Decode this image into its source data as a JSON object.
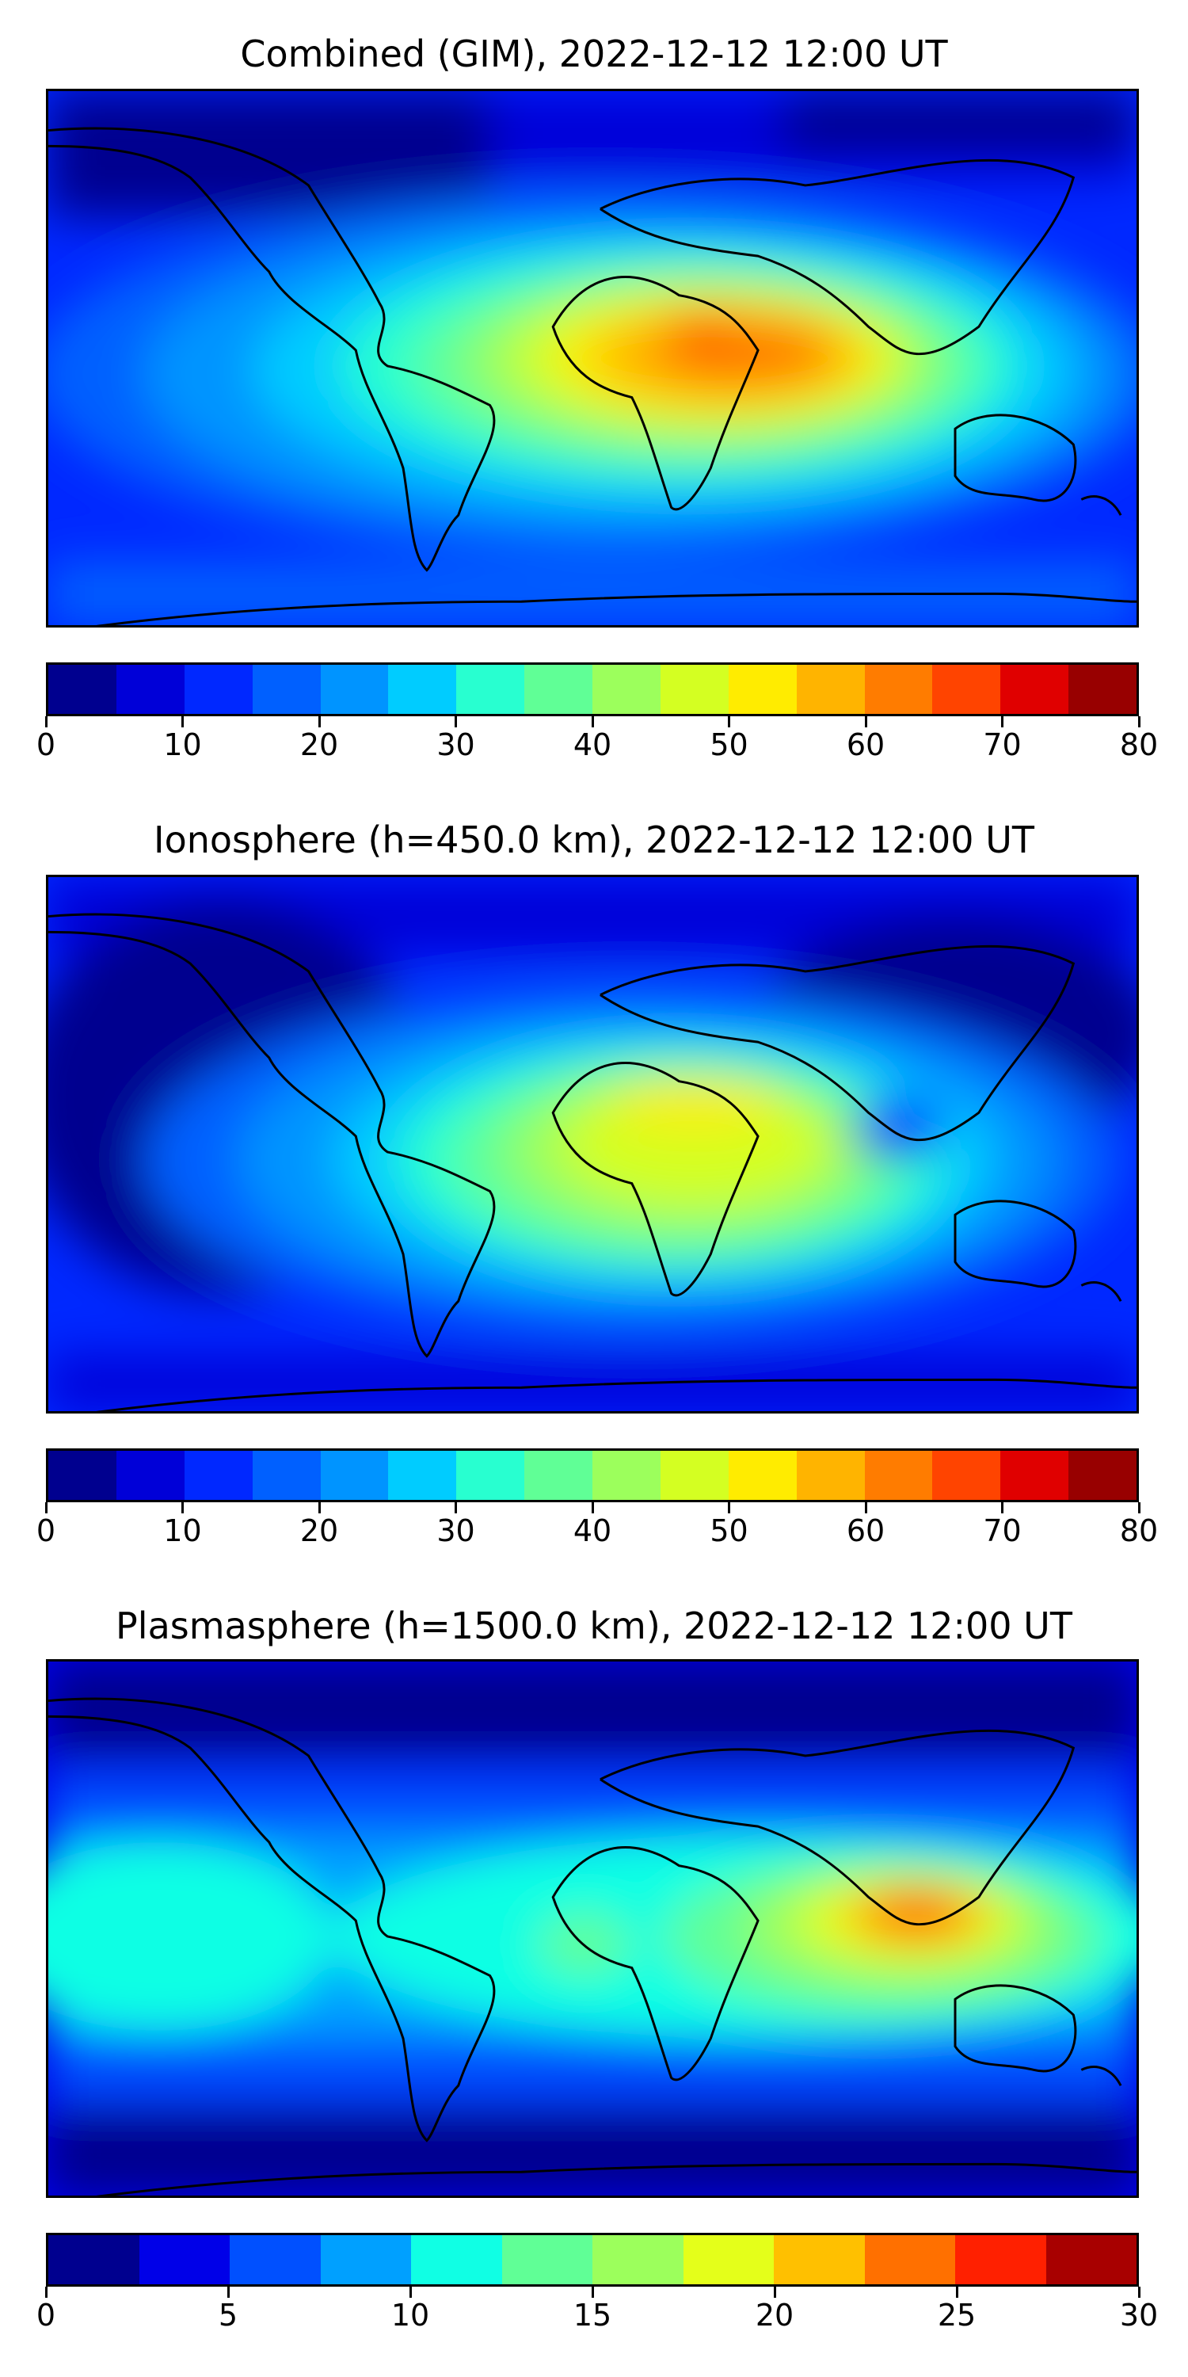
{
  "panels": [
    {
      "title": "Combined (GIM), 2022-12-12 12:00 UT",
      "levels": [
        0,
        5,
        10,
        15,
        20,
        25,
        30,
        35,
        40,
        45,
        50,
        55,
        60,
        65,
        70,
        75,
        80
      ],
      "colors": [
        "#00008f",
        "#0000d8",
        "#0028ff",
        "#0060ff",
        "#0094ff",
        "#00ccff",
        "#28ffd0",
        "#60ff96",
        "#9cff5c",
        "#d4ff22",
        "#ffec00",
        "#ffb400",
        "#ff7c00",
        "#ff4400",
        "#e00000",
        "#980000"
      ],
      "tick_labels": [
        "0",
        "10",
        "20",
        "30",
        "40",
        "50",
        "60",
        "70",
        "80"
      ]
    },
    {
      "title": "Ionosphere  (h=450.0 km), 2022-12-12 12:00 UT",
      "levels": [
        0,
        5,
        10,
        15,
        20,
        25,
        30,
        35,
        40,
        45,
        50,
        55,
        60,
        65,
        70,
        75,
        80
      ],
      "colors": [
        "#00008f",
        "#0000d8",
        "#0028ff",
        "#0060ff",
        "#0094ff",
        "#00ccff",
        "#28ffd0",
        "#60ff96",
        "#9cff5c",
        "#d4ff22",
        "#ffec00",
        "#ffb400",
        "#ff7c00",
        "#ff4400",
        "#e00000",
        "#980000"
      ],
      "tick_labels": [
        "0",
        "10",
        "20",
        "30",
        "40",
        "50",
        "60",
        "70",
        "80"
      ]
    },
    {
      "title": "Plasmasphere (h=1500.0 km), 2022-12-12 12:00 UT",
      "levels": [
        0,
        2.5,
        5,
        7.5,
        10,
        12.5,
        15,
        17.5,
        20,
        22.5,
        25,
        27.5,
        30
      ],
      "colors": [
        "#00008f",
        "#0000e8",
        "#0050ff",
        "#00a0ff",
        "#10ffe4",
        "#60ff96",
        "#9cff5c",
        "#e4ff1a",
        "#ffc000",
        "#ff7000",
        "#ff2000",
        "#a80000"
      ],
      "tick_labels": [
        "0",
        "5",
        "10",
        "15",
        "20",
        "25",
        "30"
      ]
    }
  ]
}
